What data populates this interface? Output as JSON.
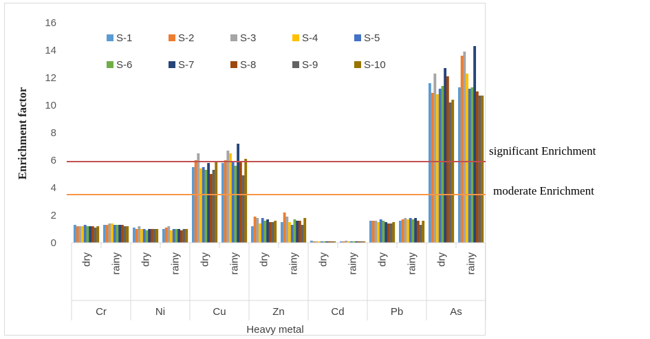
{
  "chart_data": {
    "type": "bar",
    "ylabel": "Enrichment factor",
    "xlabel": "Heavy metal",
    "ylim": [
      0,
      16
    ],
    "yticks": [
      0,
      2,
      4,
      6,
      8,
      10,
      12,
      14,
      16
    ],
    "grid": false,
    "legend_position": "top-left (inside plot)",
    "metals": [
      "Cr",
      "Ni",
      "Cu",
      "Zn",
      "Cd",
      "Pb",
      "As"
    ],
    "seasons": [
      "dry",
      "rainy"
    ],
    "categories": [
      "Cr dry",
      "Cr rainy",
      "Ni dry",
      "Ni rainy",
      "Cu dry",
      "Cu rainy",
      "Zn dry",
      "Zn rainy",
      "Cd dry",
      "Cd rainy",
      "Pb dry",
      "Pb rainy",
      "As dry",
      "As rainy"
    ],
    "series": [
      {
        "name": "S-1",
        "color": "#5b9bd5",
        "values": [
          1.3,
          1.3,
          1.1,
          1.0,
          5.5,
          5.8,
          1.2,
          1.5,
          0.15,
          0.1,
          1.6,
          1.6,
          11.6,
          11.3
        ]
      },
      {
        "name": "S-2",
        "color": "#ed7d31",
        "values": [
          1.2,
          1.3,
          1.0,
          1.1,
          6.0,
          6.0,
          1.9,
          2.2,
          0.1,
          0.1,
          1.6,
          1.7,
          10.9,
          13.6
        ]
      },
      {
        "name": "S-3",
        "color": "#a5a5a5",
        "values": [
          1.2,
          1.4,
          1.2,
          1.2,
          6.5,
          6.7,
          1.8,
          1.9,
          0.1,
          0.15,
          1.6,
          1.8,
          12.3,
          13.9
        ]
      },
      {
        "name": "S-4",
        "color": "#ffc000",
        "values": [
          1.2,
          1.4,
          1.0,
          0.9,
          5.4,
          6.5,
          1.4,
          1.5,
          0.1,
          0.1,
          1.5,
          1.7,
          10.8,
          12.3
        ]
      },
      {
        "name": "S-5",
        "color": "#4472c4",
        "values": [
          1.3,
          1.3,
          1.0,
          1.0,
          5.5,
          5.9,
          1.8,
          1.3,
          0.1,
          0.1,
          1.7,
          1.8,
          11.2,
          11.2
        ]
      },
      {
        "name": "S-6",
        "color": "#70ad47",
        "values": [
          1.2,
          1.3,
          0.9,
          1.0,
          5.3,
          5.6,
          1.6,
          1.7,
          0.1,
          0.1,
          1.6,
          1.7,
          11.4,
          11.3
        ]
      },
      {
        "name": "S-7",
        "color": "#264478",
        "values": [
          1.2,
          1.3,
          1.0,
          1.0,
          5.8,
          7.2,
          1.7,
          1.6,
          0.1,
          0.1,
          1.5,
          1.8,
          12.7,
          14.3
        ]
      },
      {
        "name": "S-8",
        "color": "#9e480e",
        "values": [
          1.2,
          1.3,
          1.0,
          0.9,
          5.0,
          5.9,
          1.5,
          1.6,
          0.1,
          0.1,
          1.4,
          1.6,
          12.1,
          11.0
        ]
      },
      {
        "name": "S-9",
        "color": "#636363",
        "values": [
          1.1,
          1.2,
          1.0,
          1.0,
          5.3,
          4.9,
          1.5,
          1.3,
          0.1,
          0.1,
          1.4,
          1.3,
          10.2,
          10.7
        ]
      },
      {
        "name": "S-10",
        "color": "#997300",
        "values": [
          1.2,
          1.2,
          1.0,
          1.0,
          5.9,
          6.1,
          1.6,
          1.8,
          0.1,
          0.1,
          1.5,
          1.6,
          10.4,
          10.7
        ]
      }
    ],
    "reference_lines": [
      {
        "label": "significant Enrichment",
        "value": 5.9,
        "color": "#c0504d"
      },
      {
        "label": "moderate Enrichment",
        "value": 3.5,
        "color": "#f79646"
      }
    ]
  }
}
